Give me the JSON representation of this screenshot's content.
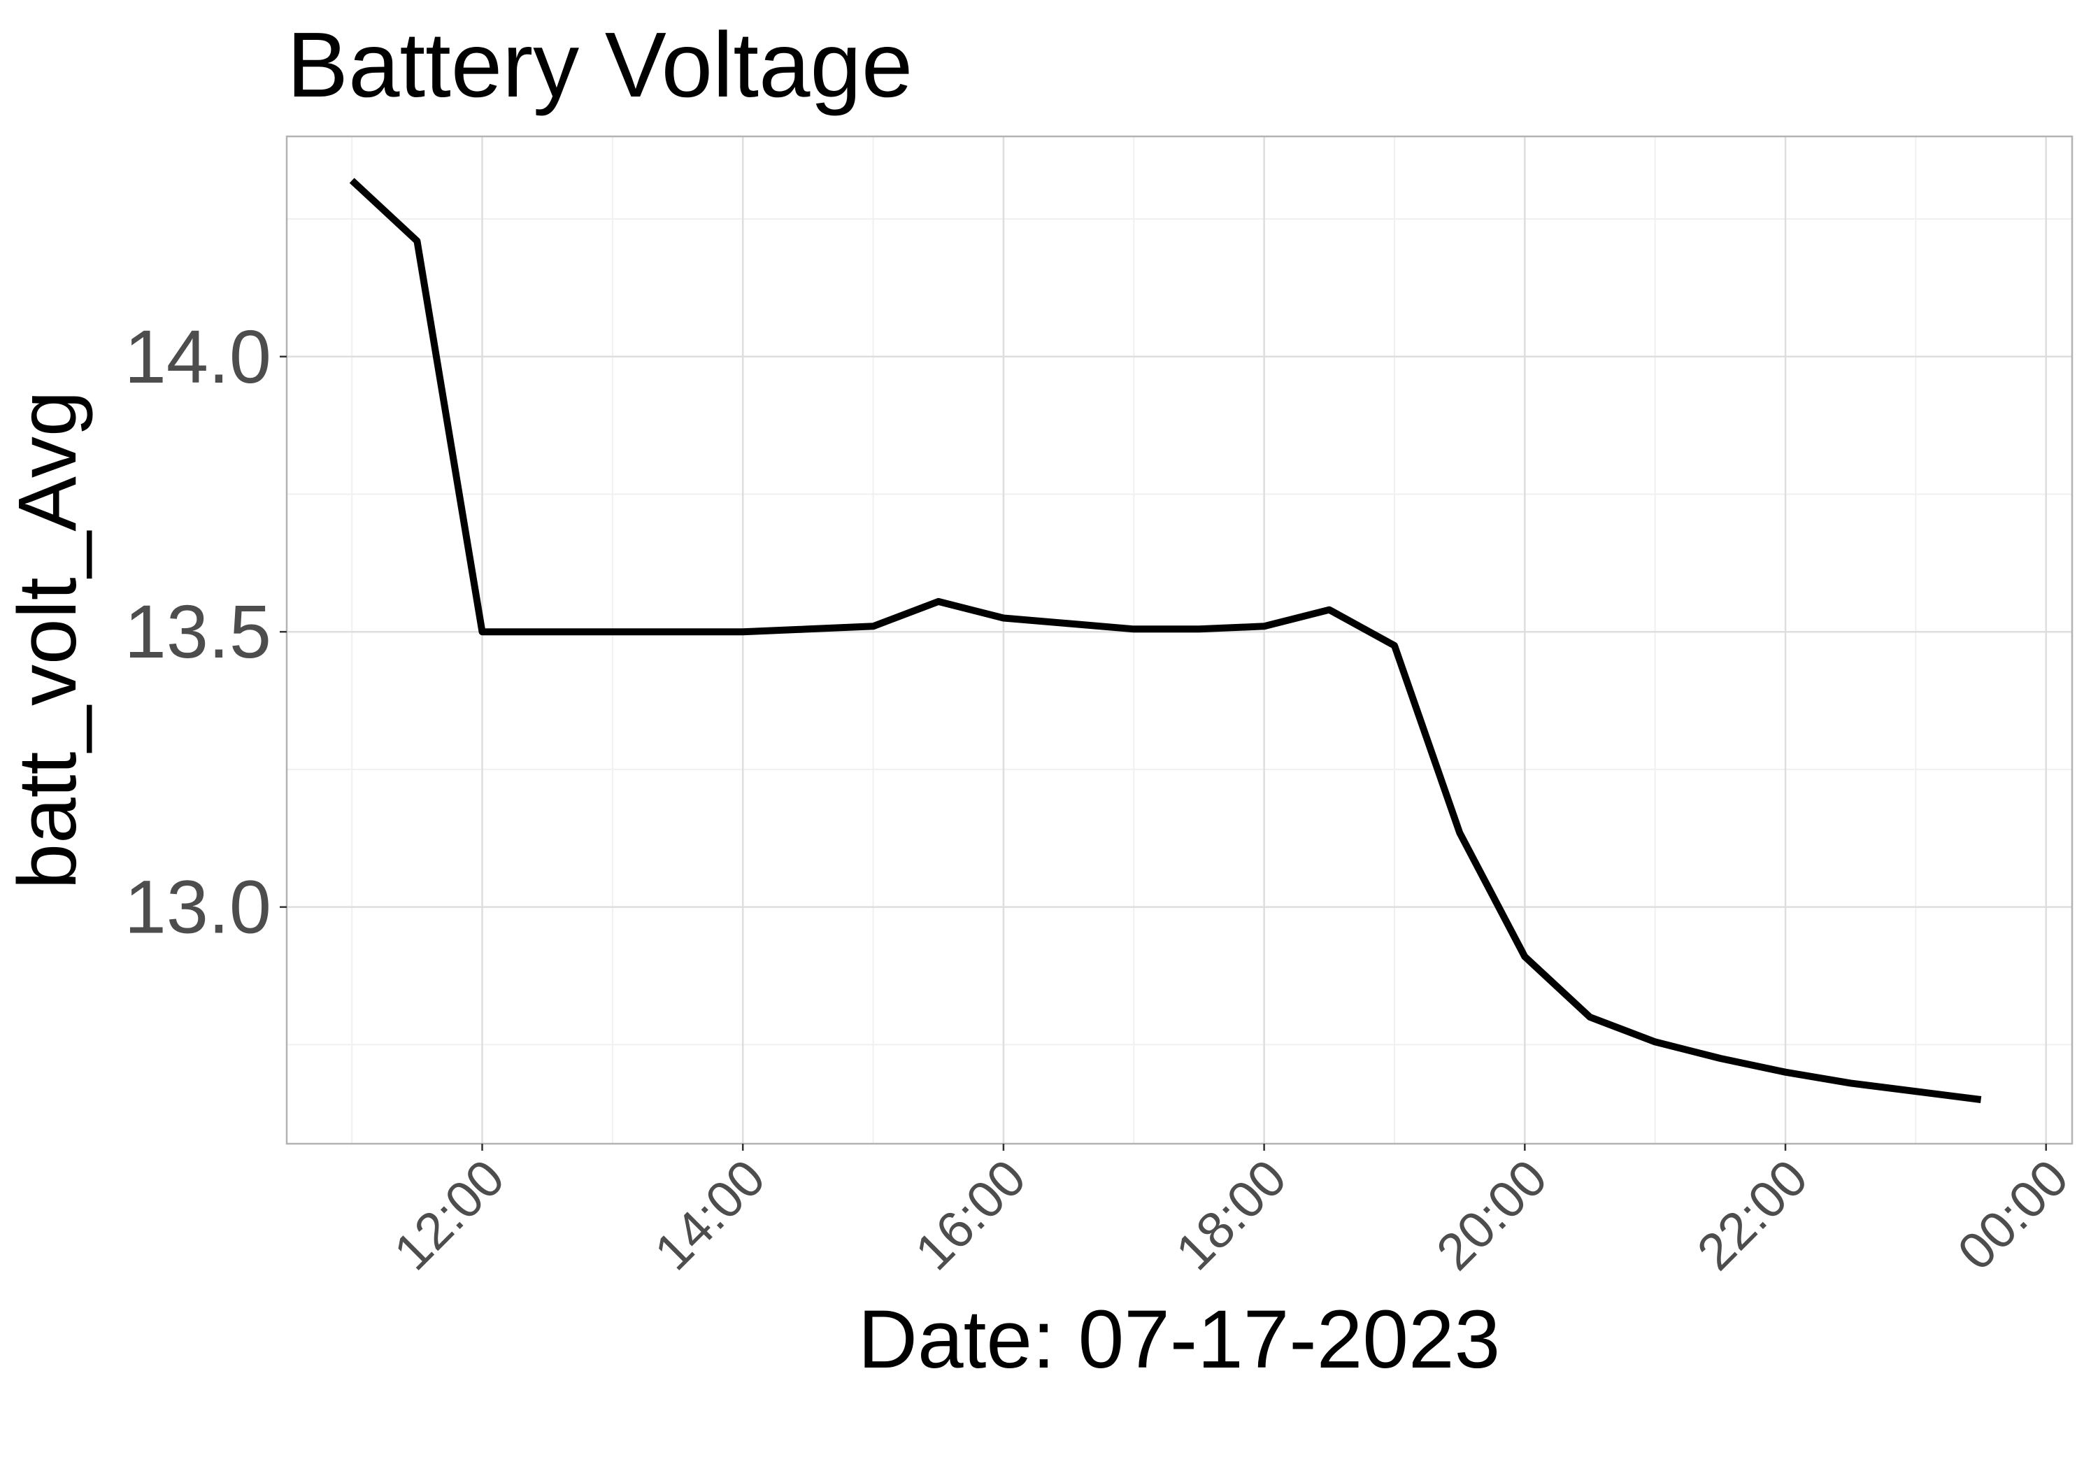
{
  "chart_data": {
    "type": "line",
    "title": "Battery Voltage",
    "xlabel": "Date: 07-17-2023",
    "ylabel": "batt_volt_Avg",
    "x_unit": "hour of day",
    "xlim": [
      10.5,
      24.2
    ],
    "ylim": [
      12.57,
      14.4
    ],
    "x_ticks": [
      {
        "value": 12,
        "label": "12:00"
      },
      {
        "value": 14,
        "label": "14:00"
      },
      {
        "value": 16,
        "label": "16:00"
      },
      {
        "value": 18,
        "label": "18:00"
      },
      {
        "value": 20,
        "label": "20:00"
      },
      {
        "value": 22,
        "label": "22:00"
      },
      {
        "value": 24,
        "label": "00:00"
      }
    ],
    "y_ticks": [
      {
        "value": 13.0,
        "label": "13.0"
      },
      {
        "value": 13.5,
        "label": "13.5"
      },
      {
        "value": 14.0,
        "label": "14.0"
      }
    ],
    "grid": true,
    "series": [
      {
        "color": "#000000",
        "x": [
          11.0,
          11.5,
          12.0,
          12.5,
          13.0,
          13.5,
          14.0,
          14.5,
          15.0,
          15.5,
          16.0,
          16.5,
          17.0,
          17.5,
          18.0,
          18.5,
          19.0,
          19.5,
          20.0,
          20.5,
          21.0,
          21.5,
          22.0,
          22.5,
          23.0,
          23.5
        ],
        "y": [
          14.32,
          14.21,
          13.5,
          13.5,
          13.5,
          13.5,
          13.5,
          13.505,
          13.51,
          13.555,
          13.525,
          13.515,
          13.505,
          13.505,
          13.51,
          13.54,
          13.475,
          13.135,
          12.91,
          12.8,
          12.755,
          12.725,
          12.7,
          12.68,
          12.665,
          12.65
        ]
      }
    ]
  }
}
